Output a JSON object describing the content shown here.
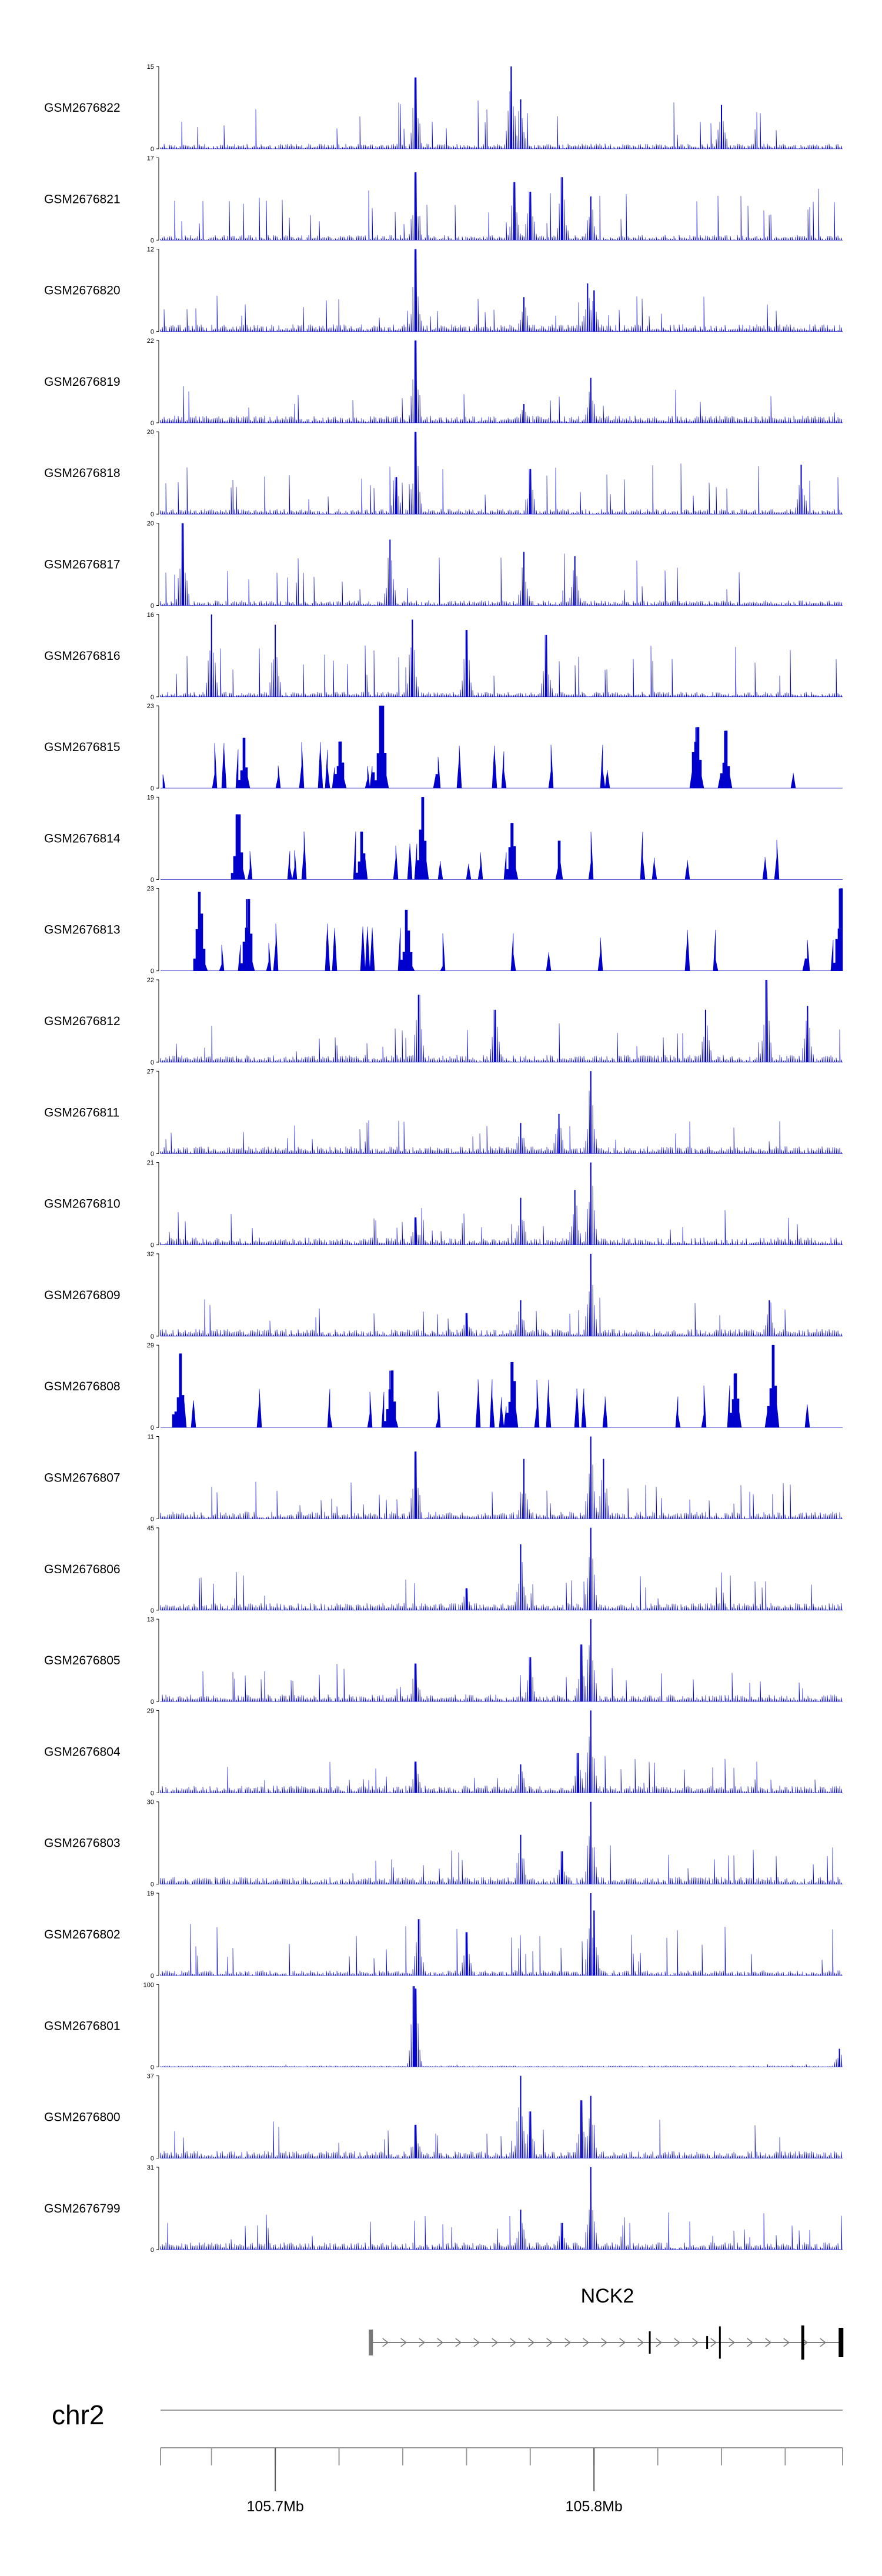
{
  "chart_data": {
    "type": "area",
    "chromosome": "chr2",
    "xlim": [
      105.664,
      105.878
    ],
    "x_ticks": [
      105.7,
      105.8
    ],
    "x_tick_labels": [
      "105.7Mb",
      "105.8Mb"
    ],
    "minor_tick_step": 0.02,
    "color": "#0000cc",
    "gene": {
      "name": "NCK2",
      "start": 105.73,
      "end": 105.878,
      "strand": "+",
      "exons": [
        105.73,
        105.8175,
        105.8355,
        105.8395,
        105.8655,
        105.8775
      ]
    },
    "tracks": [
      {
        "label": "GSM2676822",
        "ymax": 15,
        "ymin": 0,
        "style": "spiky",
        "peaks": [
          [
            105.744,
            13
          ],
          [
            105.774,
            15
          ],
          [
            105.777,
            9
          ],
          [
            105.84,
            8
          ]
        ]
      },
      {
        "label": "GSM2676821",
        "ymax": 17,
        "ymin": 0,
        "style": "spiky",
        "peaks": [
          [
            105.744,
            14
          ],
          [
            105.775,
            12
          ],
          [
            105.78,
            10
          ],
          [
            105.79,
            13
          ],
          [
            105.799,
            9
          ]
        ]
      },
      {
        "label": "GSM2676820",
        "ymax": 12,
        "ymin": 0,
        "style": "dense",
        "peaks": [
          [
            105.744,
            12
          ],
          [
            105.778,
            5
          ],
          [
            105.798,
            7
          ],
          [
            105.8,
            6
          ]
        ]
      },
      {
        "label": "GSM2676819",
        "ymax": 22,
        "ymin": 0,
        "style": "dense",
        "peaks": [
          [
            105.744,
            22
          ],
          [
            105.799,
            12
          ],
          [
            105.778,
            5
          ]
        ]
      },
      {
        "label": "GSM2676818",
        "ymax": 20,
        "ymin": 0,
        "style": "spiky",
        "peaks": [
          [
            105.744,
            20
          ],
          [
            105.738,
            9
          ],
          [
            105.78,
            11
          ],
          [
            105.865,
            12
          ]
        ]
      },
      {
        "label": "GSM2676817",
        "ymax": 20,
        "ymin": 0,
        "style": "spiky",
        "peaks": [
          [
            105.671,
            20
          ],
          [
            105.736,
            16
          ],
          [
            105.778,
            13
          ],
          [
            105.794,
            12
          ]
        ]
      },
      {
        "label": "GSM2676816",
        "ymax": 16,
        "ymin": 0,
        "style": "spiky",
        "peaks": [
          [
            105.68,
            16
          ],
          [
            105.7,
            14
          ],
          [
            105.743,
            15
          ],
          [
            105.76,
            13
          ],
          [
            105.785,
            12
          ]
        ]
      },
      {
        "label": "GSM2676815",
        "ymax": 23,
        "ymin": 0,
        "style": "sparse",
        "peaks": [
          [
            105.733,
            23
          ],
          [
            105.69,
            14
          ],
          [
            105.832,
            17
          ],
          [
            105.841,
            16
          ],
          [
            105.72,
            13
          ]
        ]
      },
      {
        "label": "GSM2676814",
        "ymax": 19,
        "ymin": 0,
        "style": "sparse",
        "peaks": [
          [
            105.746,
            19
          ],
          [
            105.688,
            15
          ],
          [
            105.774,
            13
          ],
          [
            105.727,
            11
          ]
        ]
      },
      {
        "label": "GSM2676813",
        "ymax": 23,
        "ymin": 0,
        "style": "sparse",
        "peaks": [
          [
            105.676,
            22
          ],
          [
            105.691,
            20
          ],
          [
            105.741,
            17
          ],
          [
            105.877,
            23
          ]
        ]
      },
      {
        "label": "GSM2676812",
        "ymax": 22,
        "ymin": 0,
        "style": "dense",
        "peaks": [
          [
            105.745,
            18
          ],
          [
            105.769,
            14
          ],
          [
            105.854,
            22
          ],
          [
            105.835,
            14
          ],
          [
            105.867,
            15
          ]
        ]
      },
      {
        "label": "GSM2676811",
        "ymax": 27,
        "ymin": 0,
        "style": "dense",
        "peaks": [
          [
            105.799,
            27
          ],
          [
            105.789,
            13
          ],
          [
            105.777,
            10
          ]
        ]
      },
      {
        "label": "GSM2676810",
        "ymax": 21,
        "ymin": 0,
        "style": "dense",
        "peaks": [
          [
            105.799,
            21
          ],
          [
            105.777,
            12
          ],
          [
            105.744,
            7
          ],
          [
            105.794,
            14
          ]
        ]
      },
      {
        "label": "GSM2676809",
        "ymax": 32,
        "ymin": 0,
        "style": "dense",
        "peaks": [
          [
            105.799,
            32
          ],
          [
            105.777,
            14
          ],
          [
            105.855,
            14
          ],
          [
            105.76,
            9
          ]
        ]
      },
      {
        "label": "GSM2676808",
        "ymax": 29,
        "ymin": 0,
        "style": "sparse",
        "peaks": [
          [
            105.67,
            26
          ],
          [
            105.736,
            20
          ],
          [
            105.774,
            23
          ],
          [
            105.856,
            29
          ],
          [
            105.844,
            19
          ]
        ]
      },
      {
        "label": "GSM2676807",
        "ymax": 11,
        "ymin": 0,
        "style": "dense",
        "peaks": [
          [
            105.744,
            9
          ],
          [
            105.778,
            8
          ],
          [
            105.799,
            11
          ],
          [
            105.803,
            8
          ]
        ]
      },
      {
        "label": "GSM2676806",
        "ymax": 45,
        "ymin": 0,
        "style": "dense",
        "peaks": [
          [
            105.777,
            36
          ],
          [
            105.799,
            45
          ],
          [
            105.76,
            12
          ]
        ]
      },
      {
        "label": "GSM2676805",
        "ymax": 13,
        "ymin": 0,
        "style": "dense",
        "peaks": [
          [
            105.799,
            13
          ],
          [
            105.796,
            9
          ],
          [
            105.744,
            6
          ],
          [
            105.78,
            7
          ]
        ]
      },
      {
        "label": "GSM2676804",
        "ymax": 29,
        "ymin": 0,
        "style": "dense",
        "peaks": [
          [
            105.799,
            29
          ],
          [
            105.744,
            11
          ],
          [
            105.777,
            10
          ],
          [
            105.795,
            14
          ]
        ]
      },
      {
        "label": "GSM2676803",
        "ymax": 30,
        "ymin": 0,
        "style": "dense",
        "peaks": [
          [
            105.799,
            30
          ],
          [
            105.777,
            18
          ],
          [
            105.79,
            12
          ]
        ]
      },
      {
        "label": "GSM2676802",
        "ymax": 19,
        "ymin": 0,
        "style": "spiky",
        "peaks": [
          [
            105.799,
            19
          ],
          [
            105.745,
            13
          ],
          [
            105.8,
            15
          ],
          [
            105.76,
            10
          ]
        ]
      },
      {
        "label": "GSM2676801",
        "ymax": 100,
        "ymin": 0,
        "style": "flat",
        "peaks": [
          [
            105.7435,
            98
          ],
          [
            105.744,
            95
          ],
          [
            105.877,
            22
          ]
        ]
      },
      {
        "label": "GSM2676800",
        "ymax": 37,
        "ymin": 0,
        "style": "dense",
        "peaks": [
          [
            105.777,
            37
          ],
          [
            105.796,
            26
          ],
          [
            105.799,
            28
          ],
          [
            105.744,
            15
          ],
          [
            105.78,
            21
          ]
        ]
      },
      {
        "label": "GSM2676799",
        "ymax": 31,
        "ymin": 0,
        "style": "dense",
        "peaks": [
          [
            105.799,
            31
          ],
          [
            105.777,
            15
          ],
          [
            105.79,
            10
          ]
        ]
      }
    ]
  }
}
